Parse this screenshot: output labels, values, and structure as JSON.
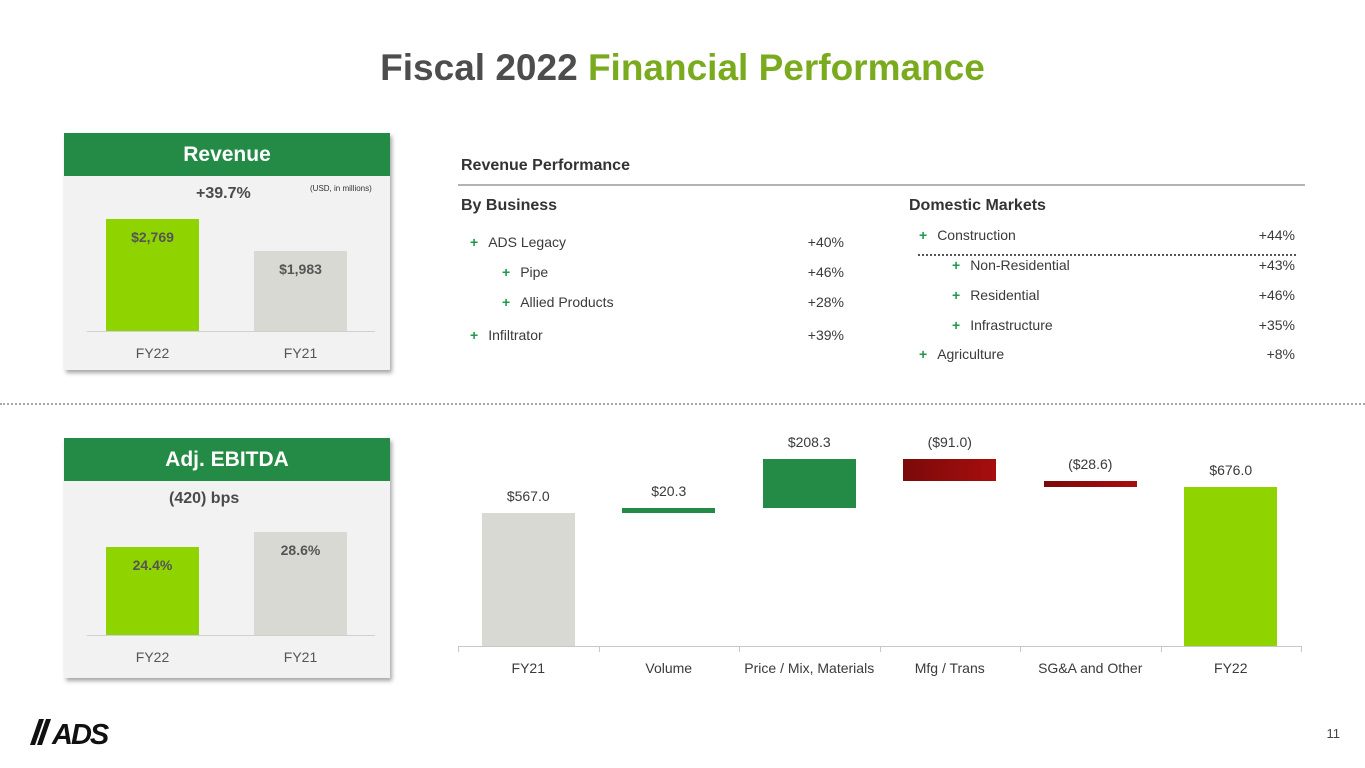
{
  "title": {
    "main": "Fiscal 2022",
    "accent": "Financial Performance"
  },
  "revenue_panel": {
    "header": "Revenue",
    "metric": "+39.7%",
    "unit": "(USD, in millions)",
    "bars": [
      {
        "label": "FY22",
        "value_label": "$2,769",
        "color": "#8fd400"
      },
      {
        "label": "FY21",
        "value_label": "$1,983",
        "color": "#d9d9d4"
      }
    ]
  },
  "ebitda_panel": {
    "header": "Adj. EBITDA",
    "metric": "(420) bps",
    "bars": [
      {
        "label": "FY22",
        "value_label": "24.4%",
        "color": "#8fd400"
      },
      {
        "label": "FY21",
        "value_label": "28.6%",
        "color": "#d9d9d4"
      }
    ]
  },
  "revenue_performance": {
    "title": "Revenue Performance",
    "by_business": {
      "heading": "By Business",
      "rows": [
        {
          "label": "ADS Legacy",
          "value": "+40%"
        },
        {
          "label": "Pipe",
          "value": "+46%"
        },
        {
          "label": "Allied Products",
          "value": "+28%"
        },
        {
          "label": "Infiltrator",
          "value": "+39%"
        }
      ]
    },
    "domestic_markets": {
      "heading": "Domestic Markets",
      "rows": [
        {
          "label": "Construction",
          "value": "+44%"
        },
        {
          "label": "Non-Residential",
          "value": "+43%"
        },
        {
          "label": "Residential",
          "value": "+46%"
        },
        {
          "label": "Infrastructure",
          "value": "+35%"
        },
        {
          "label": "Agriculture",
          "value": "+8%"
        }
      ]
    },
    "plus_symbol": "+"
  },
  "chart_data": [
    {
      "type": "bar",
      "categories": [
        "FY22",
        "FY21"
      ],
      "values": [
        2769,
        1983
      ],
      "value_labels": [
        "$2,769",
        "$1,983"
      ]
    },
    {
      "type": "bar",
      "categories": [
        "FY22",
        "FY21"
      ],
      "values": [
        24.4,
        28.6
      ],
      "value_labels": [
        "24.4%",
        "28.6%"
      ]
    },
    {
      "type": "bar",
      "subtype": "waterfall",
      "categories": [
        "FY21",
        "Volume",
        "Price / Mix, Materials",
        "Mfg / Trans",
        "SG&A and Other",
        "FY22"
      ],
      "values": [
        567.0,
        20.3,
        208.3,
        -91.0,
        -28.6,
        676.0
      ],
      "value_labels": [
        "$567.0",
        "$20.3",
        "$208.3",
        "($91.0)",
        "($28.6)",
        "$676.0"
      ],
      "colors": {
        "total_start": "#d9d9d4",
        "increase": "#238b45",
        "decrease": "#a80d0d",
        "total_end": "#8fd400"
      },
      "ylim": [
        0,
        780
      ]
    }
  ],
  "footer": {
    "logo_text": "ADS",
    "page_number": "11"
  }
}
